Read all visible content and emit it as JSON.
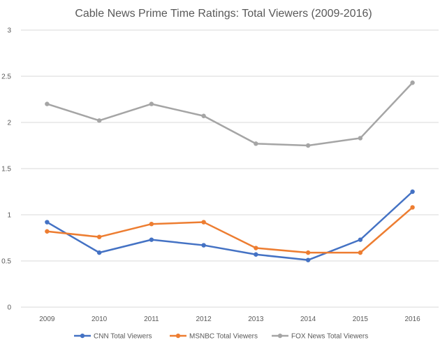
{
  "chart_data": {
    "type": "line",
    "title": "Cable News Prime Time Ratings: Total Viewers (2009-2016)",
    "xlabel": "",
    "ylabel": "",
    "categories": [
      "2009",
      "2010",
      "2011",
      "2012",
      "2013",
      "2014",
      "2015",
      "2016"
    ],
    "ylim": [
      0,
      3
    ],
    "yticks": [
      "0",
      "0.5",
      "1",
      "1.5",
      "2",
      "2.5",
      "3"
    ],
    "grid": true,
    "legend_position": "bottom",
    "series": [
      {
        "name": "CNN Total Viewers",
        "color": "#4472C4",
        "values": [
          0.92,
          0.59,
          0.73,
          0.67,
          0.57,
          0.51,
          0.73,
          1.25
        ]
      },
      {
        "name": "MSNBC Total Viewers",
        "color": "#ED7D31",
        "values": [
          0.82,
          0.76,
          0.9,
          0.92,
          0.64,
          0.59,
          0.59,
          1.08
        ]
      },
      {
        "name": "FOX News Total Viewers",
        "color": "#A5A5A5",
        "values": [
          2.2,
          2.02,
          2.2,
          2.07,
          1.77,
          1.75,
          1.83,
          2.43
        ]
      }
    ]
  }
}
